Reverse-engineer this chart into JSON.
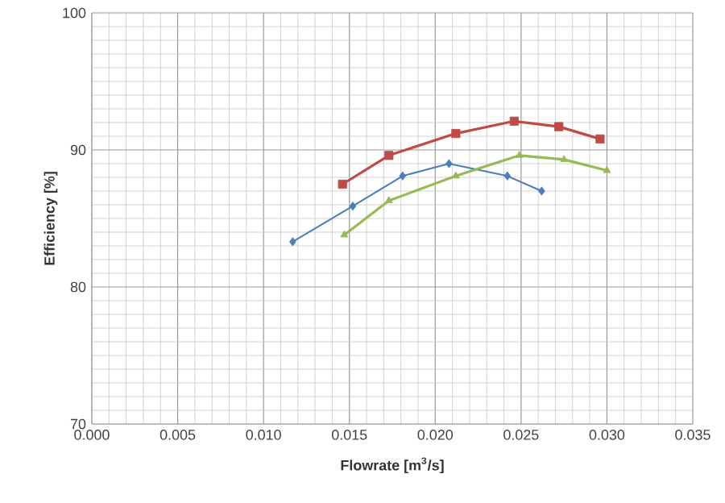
{
  "chart_data": {
    "type": "line",
    "xlabel": "Flowrate [m$^{3}$/s]",
    "ylabel": "Efficiency [%]",
    "xlim": [
      0,
      0.035
    ],
    "ylim": [
      70,
      100
    ],
    "xticks": [
      {
        "value": 0,
        "label": "0.000"
      },
      {
        "value": 0.005,
        "label": "0.005"
      },
      {
        "value": 0.01,
        "label": "0.010"
      },
      {
        "value": 0.015,
        "label": "0.015"
      },
      {
        "value": 0.02,
        "label": "0.020"
      },
      {
        "value": 0.025,
        "label": "0.025"
      },
      {
        "value": 0.03,
        "label": "0.030"
      },
      {
        "value": 0.035,
        "label": "0.035"
      }
    ],
    "yticks": [
      70,
      80,
      90,
      100
    ],
    "grid": true,
    "line_style": "solid",
    "series": [
      {
        "color": "#4a7ebb",
        "marker": "diamond",
        "x": [
          0.0117,
          0.0152,
          0.0181,
          0.0208,
          0.0242,
          0.0262
        ],
        "values": [
          83.3,
          85.9,
          88.1,
          89.0,
          88.1,
          87.0
        ]
      },
      {
        "color": "#be4b48",
        "marker": "square",
        "x": [
          0.0146,
          0.0173,
          0.0212,
          0.0246,
          0.0272,
          0.0296
        ],
        "values": [
          87.5,
          89.6,
          91.2,
          92.1,
          91.7,
          90.8
        ]
      },
      {
        "color": "#98b954",
        "marker": "triangle",
        "x": [
          0.0147,
          0.0173,
          0.0212,
          0.0249,
          0.0275,
          0.03
        ],
        "values": [
          83.8,
          86.3,
          88.1,
          89.6,
          89.3,
          88.5
        ]
      }
    ]
  }
}
